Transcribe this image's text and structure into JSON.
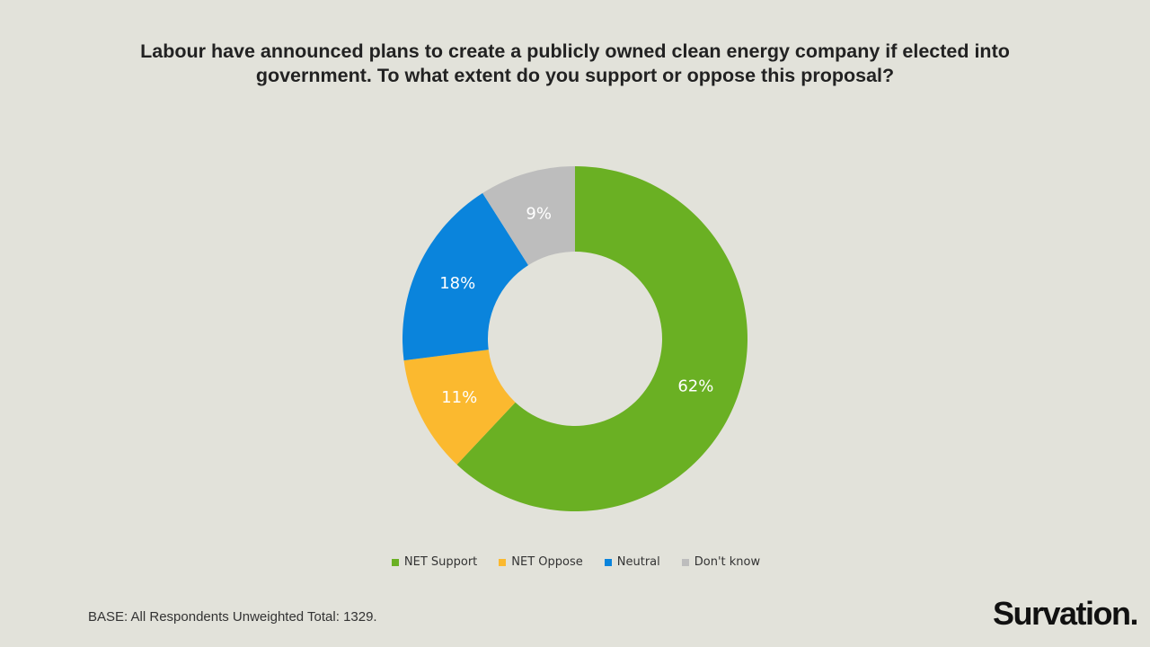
{
  "colors": {
    "background": "#e2e2da",
    "net_support": "#6ab023",
    "net_oppose": "#fbb92f",
    "neutral": "#0a84dc",
    "dont_know": "#bdbdbd"
  },
  "chart_data": {
    "type": "pie",
    "style": "donut",
    "title": "Labour have announced plans to create a publicly owned clean energy company if elected into government. To what extent do you support or oppose this proposal?",
    "slices": [
      {
        "label": "NET Support",
        "value": 62,
        "display": "62%",
        "color": "#6ab023"
      },
      {
        "label": "NET Oppose",
        "value": 11,
        "display": "11%",
        "color": "#fbb92f"
      },
      {
        "label": "Neutral",
        "value": 18,
        "display": "18%",
        "color": "#0a84dc"
      },
      {
        "label": "Don't know",
        "value": 9,
        "display": "9%",
        "color": "#bdbdbd"
      }
    ],
    "start_angle_deg": 0,
    "direction": "clockwise",
    "legend_position": "bottom"
  },
  "footer": {
    "base_note": "BASE: All Respondents Unweighted Total:  1329.",
    "brand": "Survation."
  }
}
